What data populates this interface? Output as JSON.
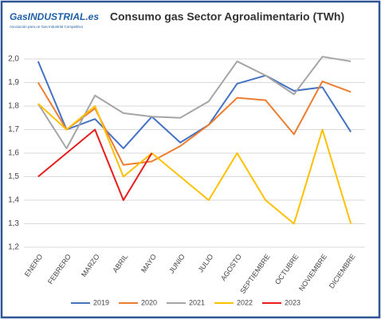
{
  "logo": {
    "name": "GasINDUSTRIAL.es",
    "tagline": "Asociación para un Gas Industrial Competitivo"
  },
  "chart_data": {
    "type": "line",
    "title": "Consumo gas Sector Agroalimentario (TWh)",
    "categories": [
      "ENERO",
      "FEBRERO",
      "MARZO",
      "ABRIL",
      "MAYO",
      "JUNIO",
      "JULIO",
      "AGOSTO",
      "SEPTIEMBRE",
      "OCTUBRE",
      "NOVIEMBRE",
      "DICIEMBRE"
    ],
    "series": [
      {
        "name": "2019",
        "color": "#4472c4",
        "values": [
          1.99,
          1.7,
          1.745,
          1.62,
          1.755,
          1.645,
          1.72,
          1.895,
          1.93,
          1.865,
          1.88,
          1.69
        ]
      },
      {
        "name": "2020",
        "color": "#ed7d31",
        "values": [
          1.9,
          1.7,
          1.79,
          1.55,
          1.565,
          1.63,
          1.72,
          1.835,
          1.825,
          1.68,
          1.905,
          1.86
        ]
      },
      {
        "name": "2021",
        "color": "#a5a5a5",
        "values": [
          1.81,
          1.62,
          1.845,
          1.77,
          1.755,
          1.75,
          1.82,
          1.99,
          1.93,
          1.85,
          2.01,
          1.99
        ]
      },
      {
        "name": "2022",
        "color": "#ffc000",
        "values": [
          1.81,
          1.7,
          1.8,
          1.5,
          1.6,
          1.5,
          1.4,
          1.6,
          1.4,
          1.3,
          1.7,
          1.3
        ]
      },
      {
        "name": "2023",
        "color": "#e81c1c",
        "values": [
          1.5,
          1.6,
          1.7,
          1.4,
          1.6,
          null,
          null,
          null,
          null,
          null,
          null,
          null
        ]
      }
    ],
    "ylim": [
      1.2,
      2.0
    ],
    "yticks": [
      {
        "value": 1.2,
        "label": "1,2"
      },
      {
        "value": 1.3,
        "label": "1,3"
      },
      {
        "value": 1.4,
        "label": "1,4"
      },
      {
        "value": 1.5,
        "label": "1,5"
      },
      {
        "value": 1.6,
        "label": "1,6"
      },
      {
        "value": 1.7,
        "label": "1,7"
      },
      {
        "value": 1.8,
        "label": "1,8"
      },
      {
        "value": 1.9,
        "label": "1,9"
      },
      {
        "value": 2.0,
        "label": "2,0"
      }
    ],
    "grid": true,
    "legend": "bottom"
  }
}
